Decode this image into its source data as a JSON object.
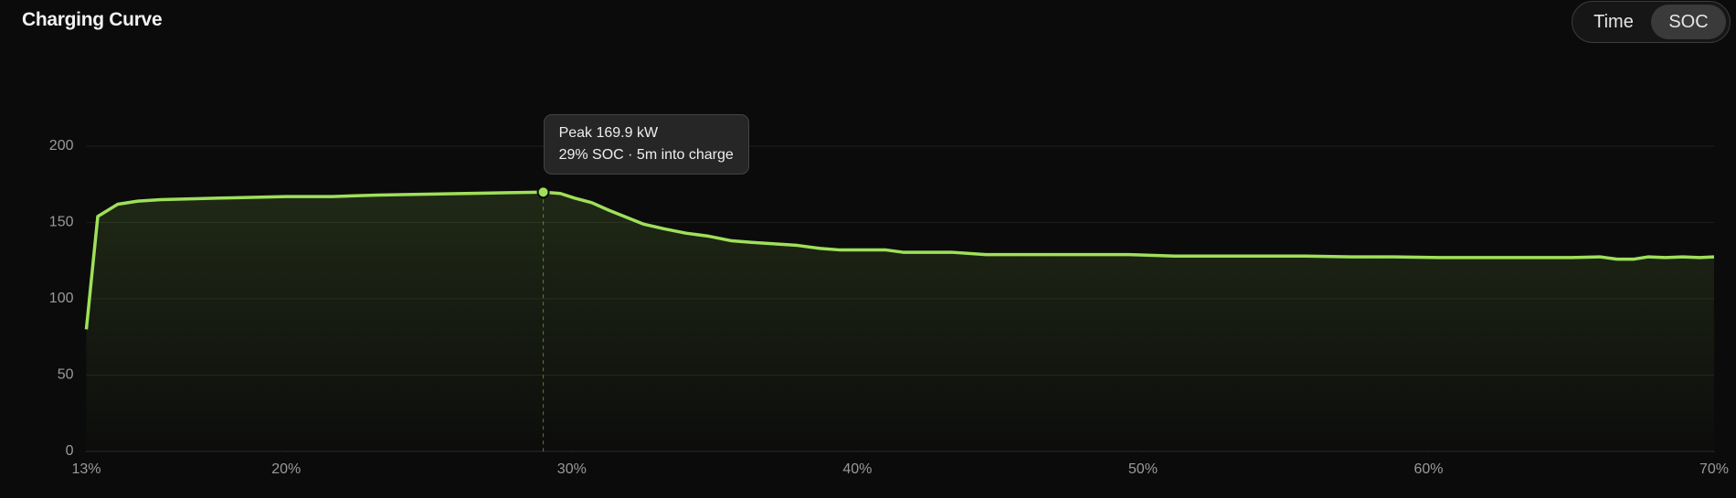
{
  "header": {
    "title": "Charging Curve",
    "toggle": [
      "Time",
      "SOC"
    ],
    "active": "SOC"
  },
  "chart_data": {
    "type": "line",
    "tooltip": [
      "Peak 169.9 kW",
      "29% SOC · 5m into charge"
    ],
    "x": [
      13,
      13.4,
      14.1,
      14.8,
      15.6,
      17.7,
      20,
      21.6,
      23.2,
      24.7,
      26.3,
      27.8,
      29,
      29.6,
      30.1,
      30.7,
      31.3,
      31.9,
      32.5,
      33.2,
      34,
      34.8,
      35.6,
      36.3,
      37.1,
      37.9,
      38.7,
      39.4,
      40.2,
      41,
      41.6,
      42.5,
      43.3,
      44.5,
      45.6,
      47.2,
      48.7,
      49.5,
      51.1,
      52.6,
      54.2,
      55.7,
      57.3,
      58.8,
      60.4,
      61.9,
      63.5,
      65,
      66,
      66.6,
      67.2,
      67.7,
      68.3,
      68.9,
      69.5,
      70
    ],
    "series": [
      {
        "color": "#9fe05a",
        "values": [
          80,
          154,
          162,
          164,
          165,
          166,
          167,
          167,
          168,
          168.5,
          169,
          169.5,
          169.9,
          169,
          166,
          163,
          158,
          153.5,
          149,
          146,
          143,
          141,
          138,
          137,
          136,
          135,
          133,
          132,
          132,
          132,
          130.5,
          130.5,
          130.5,
          129,
          129,
          129,
          129,
          129,
          128,
          128,
          128,
          128,
          127.5,
          127.5,
          127,
          127,
          127,
          127,
          127.5,
          126,
          126,
          127.5,
          127,
          127.5,
          127,
          127.5
        ]
      }
    ],
    "xlim": [
      13,
      70
    ],
    "xticks": [
      {
        "value": 13,
        "label": "13%"
      },
      {
        "value": 20,
        "label": "20%"
      },
      {
        "value": 30,
        "label": "30%"
      },
      {
        "value": 40,
        "label": "40%"
      },
      {
        "value": 50,
        "label": "50%"
      },
      {
        "value": 60,
        "label": "60%"
      },
      {
        "value": 70,
        "label": "70%"
      }
    ],
    "ylim": [
      0,
      200
    ],
    "yticks": [
      0,
      50,
      100,
      150,
      200
    ],
    "grid": true
  }
}
